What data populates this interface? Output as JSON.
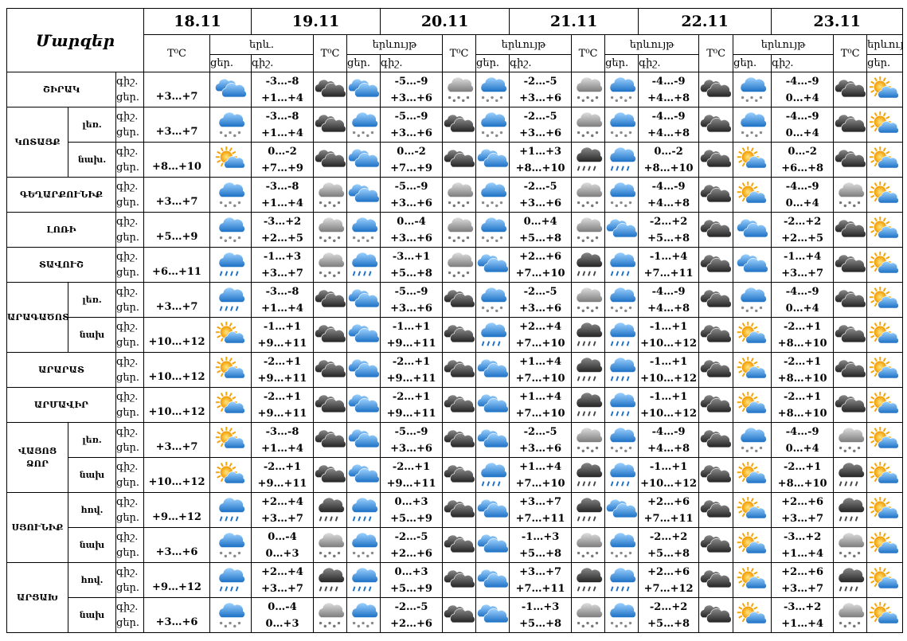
{
  "header": {
    "title": "Մարզեր",
    "dates": [
      "18.11",
      "19.11",
      "20.11",
      "21.11",
      "22.11",
      "23.11"
    ],
    "temp_label": "T⁰C",
    "phenomenon_short": "երև.",
    "phenomenon": "երևույթ",
    "night": "գիշ.",
    "day": "ցեր."
  },
  "regions": [
    {
      "name": "ՇԻՐԱԿ",
      "rows": [
        {
          "first": "+3…+7",
          "days": [
            [
              "-3…-8",
              "+1…+4"
            ],
            [
              "-5…-9",
              "+3…+6"
            ],
            [
              "-2…-5",
              "+3…+6"
            ],
            [
              "-4…-9",
              "+4…+8"
            ],
            [
              "-4…-9",
              "0…+4"
            ]
          ]
        }
      ]
    },
    {
      "name": "ԿՈՏԱՅՔ",
      "rows": [
        {
          "zone": "լեռ.",
          "first": "+3…+7",
          "days": [
            [
              "-3…-8",
              "+1…+4"
            ],
            [
              "-5…-9",
              "+3…+6"
            ],
            [
              "-2…-5",
              "+3…+6"
            ],
            [
              "-4…-9",
              "+4…+8"
            ],
            [
              "-4…-9",
              "0…+4"
            ]
          ]
        },
        {
          "zone": "նախ.",
          "first": "+8…+10",
          "days": [
            [
              "0…-2",
              "+7…+9"
            ],
            [
              "0…-2",
              "+7…+9"
            ],
            [
              "+1…+3",
              "+8…+10"
            ],
            [
              "0…-2",
              "+8…+10"
            ],
            [
              "0…-2",
              "+6…+8"
            ]
          ]
        }
      ]
    },
    {
      "name": "ԳԵՂԱՐՔՈՒՆԻՔ",
      "rows": [
        {
          "first": "+3…+7",
          "days": [
            [
              "-3…-8",
              "+1…+4"
            ],
            [
              "-5…-9",
              "+3…+6"
            ],
            [
              "-2…-5",
              "+3…+6"
            ],
            [
              "-4…-9",
              "+4…+8"
            ],
            [
              "-4…-9",
              "0…+4"
            ]
          ]
        }
      ]
    },
    {
      "name": "ԼՈՌԻ",
      "rows": [
        {
          "first": "+5…+9",
          "days": [
            [
              "-3…+2",
              "+2…+5"
            ],
            [
              "0…-4",
              "+3…+6"
            ],
            [
              "0…+4",
              "+5…+8"
            ],
            [
              "-2…+2",
              "+5…+8"
            ],
            [
              "-2…+2",
              "+2…+5"
            ]
          ]
        }
      ]
    },
    {
      "name": "ՏԱՎՈՒՇ",
      "rows": [
        {
          "first": "+6…+11",
          "days": [
            [
              "-1…+3",
              "+3…+7"
            ],
            [
              "-3…+1",
              "+5…+8"
            ],
            [
              "+2…+6",
              "+7…+10"
            ],
            [
              "-1…+4",
              "+7…+11"
            ],
            [
              "-1…+4",
              "+3…+7"
            ]
          ]
        }
      ]
    },
    {
      "name": "ԱՐԱԳԱԾՈՏՆ",
      "rows": [
        {
          "zone": "լեռ.",
          "first": "+3…+7",
          "days": [
            [
              "-3…-8",
              "+1…+4"
            ],
            [
              "-5…-9",
              "+3…+6"
            ],
            [
              "-2…-5",
              "+3…+6"
            ],
            [
              "-4…-9",
              "+4…+8"
            ],
            [
              "-4…-9",
              "0…+4"
            ]
          ]
        },
        {
          "zone": "նախ",
          "first": "+10…+12",
          "days": [
            [
              "-1…+1",
              "+9…+11"
            ],
            [
              "-1…+1",
              "+9…+11"
            ],
            [
              "+2…+4",
              "+7…+10"
            ],
            [
              "-1…+1",
              "+10…+12"
            ],
            [
              "-2…+1",
              "+8…+10"
            ]
          ]
        }
      ]
    },
    {
      "name": "ԱՐԱՐԱՏ",
      "rows": [
        {
          "first": "+10…+12",
          "days": [
            [
              "-2…+1",
              "+9…+11"
            ],
            [
              "-2…+1",
              "+9…+11"
            ],
            [
              "+1…+4",
              "+7…+10"
            ],
            [
              "-1…+1",
              "+10…+12"
            ],
            [
              "-2…+1",
              "+8…+10"
            ]
          ]
        }
      ]
    },
    {
      "name": "ԱՐՄԱՎԻՐ",
      "rows": [
        {
          "first": "+10…+12",
          "days": [
            [
              "-2…+1",
              "+9…+11"
            ],
            [
              "-2…+1",
              "+9…+11"
            ],
            [
              "+1…+4",
              "+7…+10"
            ],
            [
              "-1…+1",
              "+10…+12"
            ],
            [
              "-2…+1",
              "+8…+10"
            ]
          ]
        }
      ]
    },
    {
      "name": "ՎԱՅՈՑ ՁՈՐ",
      "rows": [
        {
          "zone": "լեռ.",
          "first": "+3…+7",
          "days": [
            [
              "-3…-8",
              "+1…+4"
            ],
            [
              "-5…-9",
              "+3…+6"
            ],
            [
              "-2…-5",
              "+3…+6"
            ],
            [
              "-4…-9",
              "+4…+8"
            ],
            [
              "-4…-9",
              "0…+4"
            ]
          ]
        },
        {
          "zone": "նախ",
          "first": "+10…+12",
          "days": [
            [
              "-2…+1",
              "+9…+11"
            ],
            [
              "-2…+1",
              "+9…+11"
            ],
            [
              "+1…+4",
              "+7…+10"
            ],
            [
              "-1…+1",
              "+10…+12"
            ],
            [
              "-2…+1",
              "+8…+10"
            ]
          ]
        }
      ]
    },
    {
      "name": "ՍՅՈՒՆԻՔ",
      "rows": [
        {
          "zone": "հով.",
          "first": "+9…+12",
          "days": [
            [
              "+2…+4",
              "+3…+7"
            ],
            [
              "0…+3",
              "+5…+9"
            ],
            [
              "+3…+7",
              "+7…+11"
            ],
            [
              "+2…+6",
              "+7…+11"
            ],
            [
              "+2…+6",
              "+3…+7"
            ]
          ]
        },
        {
          "zone": "նախ",
          "first": "+3…+6",
          "days": [
            [
              "0…-4",
              "0…+3"
            ],
            [
              "-2…-5",
              "+2…+6"
            ],
            [
              "-1…+3",
              "+5…+8"
            ],
            [
              "-2…+2",
              "+5…+8"
            ],
            [
              "-3…+2",
              "+1…+4"
            ]
          ]
        }
      ]
    },
    {
      "name": "ԱՐՑԱԽ",
      "rows": [
        {
          "zone": "հով.",
          "first": "+9…+12",
          "days": [
            [
              "+2…+4",
              "+3…+7"
            ],
            [
              "0…+3",
              "+5…+9"
            ],
            [
              "+3…+7",
              "+7…+11"
            ],
            [
              "+2…+6",
              "+7…+12"
            ],
            [
              "+2…+6",
              "+3…+7"
            ]
          ]
        },
        {
          "zone": "նախ",
          "first": "+3…+6",
          "days": [
            [
              "0…-4",
              "0…+3"
            ],
            [
              "-2…-5",
              "+2…+6"
            ],
            [
              "-1…+3",
              "+5…+8"
            ],
            [
              "-2…+2",
              "+5…+8"
            ],
            [
              "-3…+2",
              "+1…+4"
            ]
          ]
        }
      ]
    }
  ]
}
